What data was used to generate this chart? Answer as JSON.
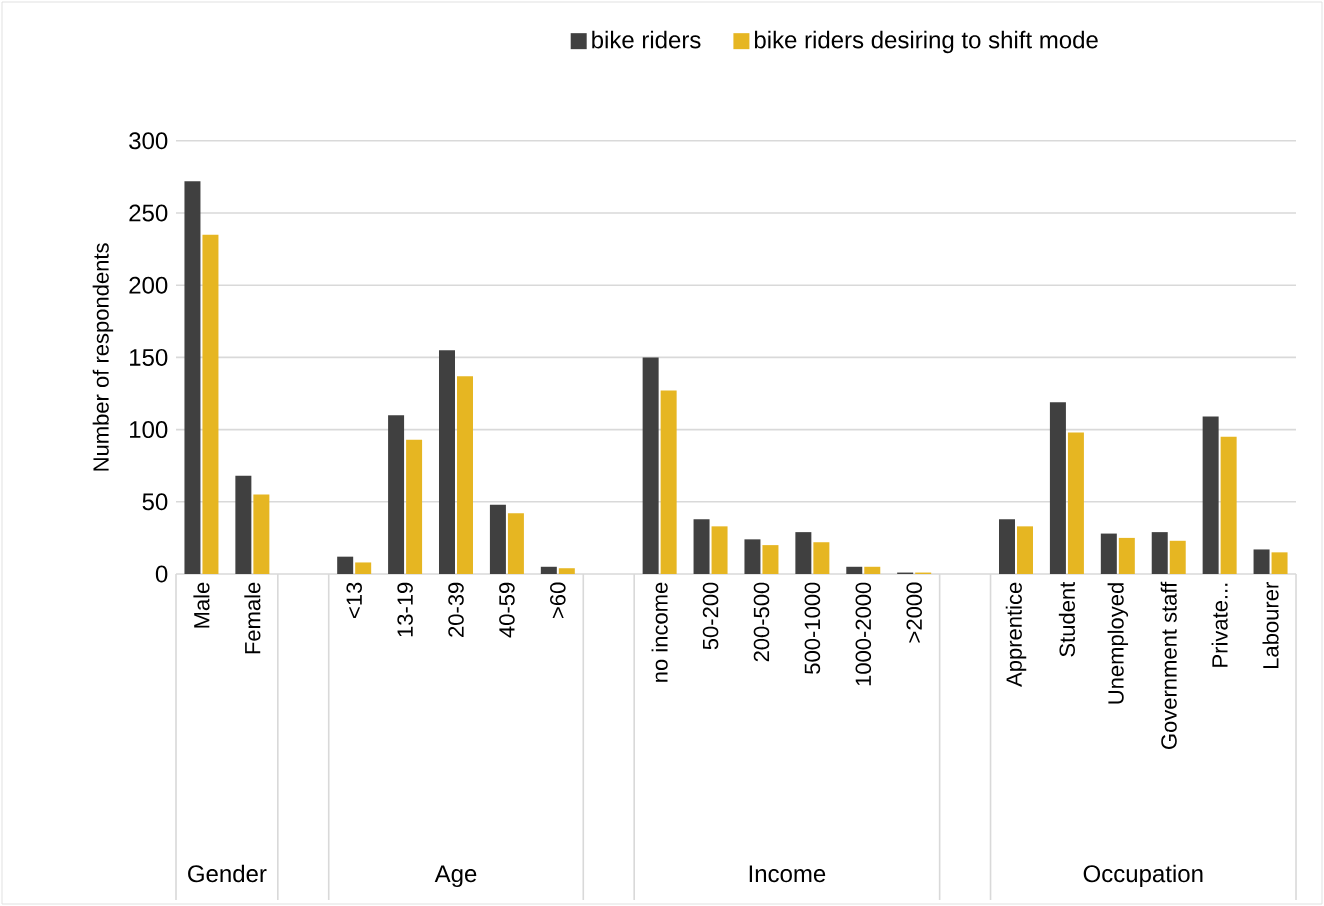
{
  "chart_data": {
    "type": "bar",
    "ylabel": "Number of respondents",
    "categories": [
      "Male",
      "Female",
      null,
      "<13",
      "13-19",
      "20-39",
      "40-59",
      ">60",
      null,
      "no income",
      "50-200",
      "200-500",
      "500-1000",
      "1000-2000",
      ">2000",
      null,
      "Apprentice",
      "Student",
      "Unemployed",
      "Government staff",
      "Private...",
      "Labourer"
    ],
    "series": [
      {
        "name": "bike riders",
        "color": "#404040",
        "values": [
          272,
          68,
          null,
          12,
          110,
          155,
          48,
          5,
          null,
          150,
          38,
          24,
          29,
          5,
          1,
          null,
          38,
          119,
          28,
          29,
          109,
          17
        ]
      },
      {
        "name": "bike riders desiring to shift mode",
        "color": "#e6b622",
        "values": [
          235,
          55,
          null,
          8,
          93,
          137,
          42,
          4,
          null,
          127,
          33,
          20,
          22,
          5,
          1,
          null,
          33,
          98,
          25,
          23,
          95,
          15
        ]
      }
    ],
    "annotations": [
      "Gender",
      "Age",
      "Income",
      "Occupation"
    ],
    "ylim": [
      0,
      300
    ],
    "yticks": [
      0,
      50,
      100,
      150,
      200,
      250,
      300
    ],
    "grid": "y",
    "legend": "top"
  }
}
